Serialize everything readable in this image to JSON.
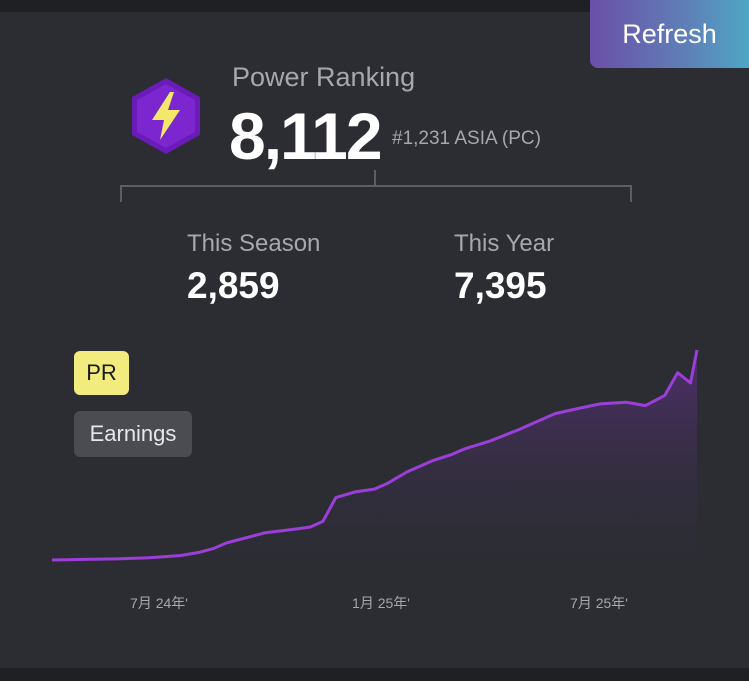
{
  "refresh_label": "Refresh",
  "power_ranking": {
    "label": "Power Ranking",
    "value": "8,112",
    "rank": "#1,231 ASIA (PC)"
  },
  "stats": [
    {
      "label": "This Season",
      "value": "2,859"
    },
    {
      "label": "This Year",
      "value": "7,395"
    }
  ],
  "tabs": {
    "pr": "PR",
    "earnings": "Earnings"
  },
  "colors": {
    "accent": "#9b3fd8",
    "hex_fill": "#6a1bb8",
    "bolt": "#f2e86a",
    "pr_tab": "#f2ec7f"
  },
  "icons": {
    "rank_badge": "lightning-bolt-hexagon-icon"
  },
  "chart_data": {
    "type": "area",
    "x_tick_labels": [
      "7月 24年'",
      "1月 25年'",
      "7月 25年'"
    ],
    "series": [
      {
        "values": [
          [
            0.0,
            0
          ],
          [
            0.05,
            1
          ],
          [
            0.1,
            2
          ],
          [
            0.15,
            4
          ],
          [
            0.2,
            8
          ],
          [
            0.23,
            14
          ],
          [
            0.25,
            20
          ],
          [
            0.27,
            30
          ],
          [
            0.33,
            48
          ],
          [
            0.36,
            52
          ],
          [
            0.4,
            58
          ],
          [
            0.42,
            68
          ],
          [
            0.44,
            110
          ],
          [
            0.47,
            120
          ],
          [
            0.5,
            125
          ],
          [
            0.52,
            135
          ],
          [
            0.55,
            155
          ],
          [
            0.57,
            165
          ],
          [
            0.59,
            175
          ],
          [
            0.62,
            186
          ],
          [
            0.64,
            196
          ],
          [
            0.68,
            210
          ],
          [
            0.72,
            228
          ],
          [
            0.78,
            258
          ],
          [
            0.82,
            268
          ],
          [
            0.85,
            275
          ],
          [
            0.89,
            278
          ],
          [
            0.92,
            272
          ],
          [
            0.95,
            290
          ],
          [
            0.97,
            330
          ],
          [
            0.99,
            312
          ],
          [
            1.0,
            370
          ]
        ]
      }
    ]
  }
}
